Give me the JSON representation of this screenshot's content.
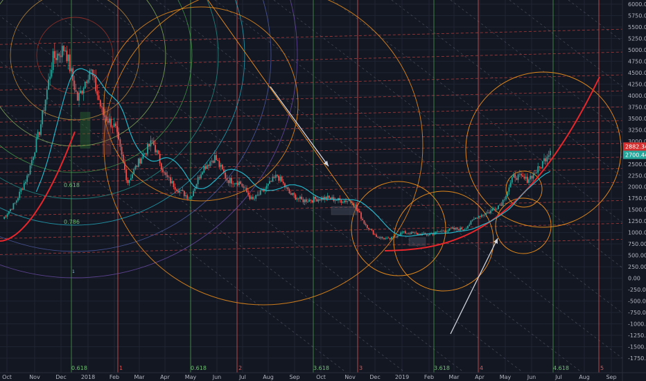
{
  "chart_data": {
    "type": "candlestick",
    "title": "",
    "xlabel": "",
    "ylabel": "",
    "ylim": [
      -1750,
      6000
    ],
    "grid": true,
    "colors": {
      "background": "#131722",
      "grid": "#1f2433",
      "up": "#26a69a",
      "down": "#ef5350",
      "ma": "#26c6da",
      "support_curve": "#e8262b",
      "orange": "#f7931a",
      "price_badge": "#d32f2f",
      "ma_badge": "#26a69a"
    },
    "x_ticks": [
      "Oct",
      "Nov",
      "Dec",
      "2018",
      "Feb",
      "Mar",
      "Apr",
      "May",
      "Jun",
      "Jul",
      "Aug",
      "Sep",
      "Oct",
      "Nov",
      "Dec",
      "2019",
      "Feb",
      "Mar",
      "Apr",
      "May",
      "Jun",
      "Jul",
      "Aug",
      "Sep"
    ],
    "y_ticks": [
      "6000.00",
      "5750.00",
      "5500.00",
      "5250.00",
      "5000.00",
      "4750.00",
      "4500.00",
      "4250.00",
      "4000.00",
      "3750.00",
      "3500.00",
      "3250.00",
      "3000.00",
      "2750.00",
      "2500.00",
      "2250.00",
      "2000.00",
      "1750.00",
      "1500.00",
      "1250.00",
      "1000.00",
      "750.00",
      "500.00",
      "250.00",
      "0.00",
      "-250.00",
      "-500.00",
      "-750.00",
      "-1000.00",
      "-1250.00",
      "-1500.00",
      "-1750.00"
    ],
    "price_badge": "2882.34",
    "ma_badge": "2700.44",
    "fib_time_labels": [
      "0.618",
      "0.618",
      "3.618",
      "3.618",
      "4.618"
    ],
    "cycle_labels": [
      "1",
      "2",
      "3",
      "4",
      "5"
    ],
    "fib_level_labels": [
      "0.618",
      "0.786"
    ],
    "annotation": "1",
    "price_path": [
      [
        "Oct",
        1300
      ],
      [
        "Nov",
        1650
      ],
      [
        "Nov",
        2250
      ],
      [
        "Dec",
        3300
      ],
      [
        "Dec",
        4800
      ],
      [
        "Dec",
        5050
      ],
      [
        "Dec",
        3900
      ],
      [
        "2018",
        4600
      ],
      [
        "2018",
        3600
      ],
      [
        "2018",
        3300
      ],
      [
        "Feb",
        2100
      ],
      [
        "Feb",
        2600
      ],
      [
        "Mar",
        3000
      ],
      [
        "Mar",
        2250
      ],
      [
        "Apr",
        1950
      ],
      [
        "Apr",
        1750
      ],
      [
        "May",
        2400
      ],
      [
        "May",
        2650
      ],
      [
        "Jun",
        2150
      ],
      [
        "Jun",
        2100
      ],
      [
        "Jul",
        1700
      ],
      [
        "Jul",
        1950
      ],
      [
        "Aug",
        2250
      ],
      [
        "Aug",
        1850
      ],
      [
        "Sep",
        1700
      ],
      [
        "Sep",
        1730
      ],
      [
        "Oct",
        1760
      ],
      [
        "Oct",
        1700
      ],
      [
        "Nov",
        1700
      ],
      [
        "Nov",
        1200
      ],
      [
        "Dec",
        900
      ],
      [
        "Dec",
        850
      ],
      [
        "2019",
        1000
      ],
      [
        "2019",
        980
      ],
      [
        "Feb",
        950
      ],
      [
        "Feb",
        1020
      ],
      [
        "Mar",
        1070
      ],
      [
        "Mar",
        1080
      ],
      [
        "Apr",
        1350
      ],
      [
        "Apr",
        1450
      ],
      [
        "May",
        1650
      ],
      [
        "May",
        2250
      ],
      [
        "Jun",
        2150
      ],
      [
        "Jun",
        2400
      ],
      [
        "Jun",
        2882
      ]
    ]
  }
}
